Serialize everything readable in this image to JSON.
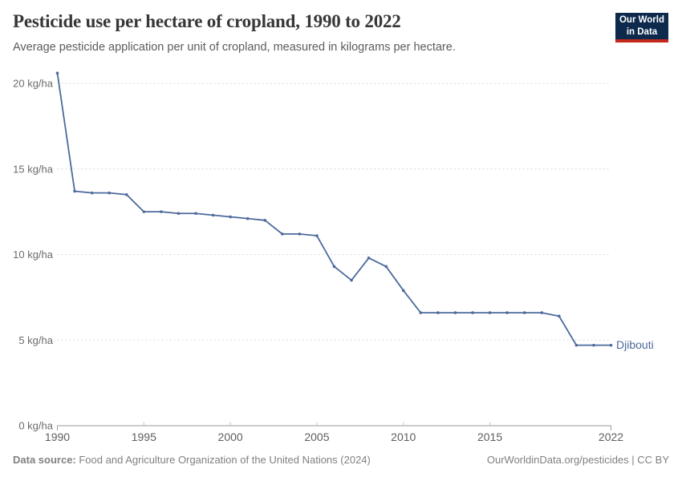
{
  "header": {
    "title": "Pesticide use per hectare of cropland, 1990 to 2022",
    "subtitle": "Average pesticide application per unit of cropland, measured in kilograms per hectare."
  },
  "logo": {
    "line1": "Our World",
    "line2": "in Data",
    "bg_color": "#0d2a4d",
    "accent_color": "#c5281c"
  },
  "chart_data": {
    "type": "line",
    "title": "Pesticide use per hectare of cropland, 1990 to 2022",
    "unit": "kg/ha",
    "xlabel": "",
    "ylabel": "kg/ha",
    "xlim": [
      1990,
      2022
    ],
    "ylim": [
      0,
      21
    ],
    "grid": "horizontal-dashed",
    "legend": "end-of-line-label",
    "x": [
      1990,
      1991,
      1992,
      1993,
      1994,
      1995,
      1996,
      1997,
      1998,
      1999,
      2000,
      2001,
      2002,
      2003,
      2004,
      2005,
      2006,
      2007,
      2008,
      2009,
      2010,
      2011,
      2012,
      2013,
      2014,
      2015,
      2016,
      2017,
      2018,
      2019,
      2020,
      2021,
      2022
    ],
    "series": [
      {
        "name": "Djibouti",
        "color": "#4C6A9C",
        "values": [
          20.6,
          13.7,
          13.6,
          13.6,
          13.5,
          12.5,
          12.5,
          12.4,
          12.4,
          12.3,
          12.2,
          12.1,
          12.0,
          11.2,
          11.2,
          11.1,
          9.3,
          8.5,
          9.8,
          9.3,
          7.9,
          6.6,
          6.6,
          6.6,
          6.6,
          6.6,
          6.6,
          6.6,
          6.6,
          6.4,
          4.7,
          4.7,
          4.7
        ]
      }
    ],
    "yticks": [
      {
        "value": 0,
        "label": "0 kg/ha"
      },
      {
        "value": 5,
        "label": "5 kg/ha"
      },
      {
        "value": 10,
        "label": "10 kg/ha"
      },
      {
        "value": 15,
        "label": "15 kg/ha"
      },
      {
        "value": 20,
        "label": "20 kg/ha"
      }
    ],
    "xticks": [
      {
        "value": 1990,
        "label": "1990"
      },
      {
        "value": 1995,
        "label": "1995"
      },
      {
        "value": 2000,
        "label": "2000"
      },
      {
        "value": 2005,
        "label": "2005"
      },
      {
        "value": 2010,
        "label": "2010"
      },
      {
        "value": 2015,
        "label": "2015"
      },
      {
        "value": 2022,
        "label": "2022"
      }
    ],
    "end_label": "Djibouti"
  },
  "colors": {
    "line": "#4C6A9C",
    "gridline": "#d9d9d9",
    "axis_line": "#9a9a9a",
    "inner_tick": "#c2c2c2",
    "y_tick_label": "#6b6b6b",
    "x_tick_label": "#5e5e5e"
  },
  "footer": {
    "datasource_label": "Data source:",
    "datasource_text": " Food and Agriculture Organization of the United Nations (2024)",
    "right_text": "OurWorldinData.org/pesticides | CC BY"
  }
}
